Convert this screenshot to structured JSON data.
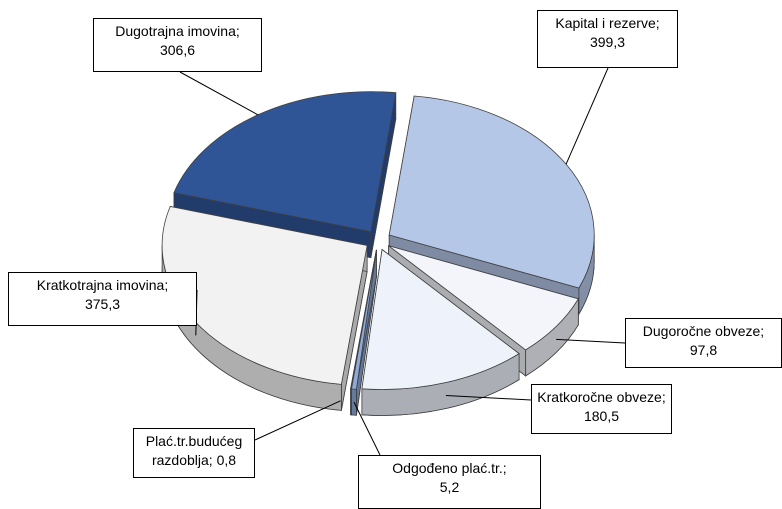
{
  "chart_data": {
    "type": "pie3d",
    "categories": [
      "Kapital i rezerve;",
      "Dugoročne obveze;",
      "Kratkoročne obveze;",
      "Odgođeno plać.tr.;",
      "Plać.tr.budućeg razdoblja;",
      "Kratkotrajna imovina;",
      "Dugotrajna imovina;"
    ],
    "values": [
      399.3,
      97.8,
      180.5,
      5.2,
      0.8,
      375.3,
      306.6
    ],
    "value_labels": [
      "399,3",
      "97,8",
      "180,5",
      "5,2",
      "0,8",
      "375,3",
      "306,6"
    ],
    "colors": [
      "#b4c7e7",
      "#f3f5fb",
      "#eef3fb",
      "#8eaadb",
      "#d9d9d9",
      "#f2f2f2",
      "#2f5597"
    ]
  }
}
